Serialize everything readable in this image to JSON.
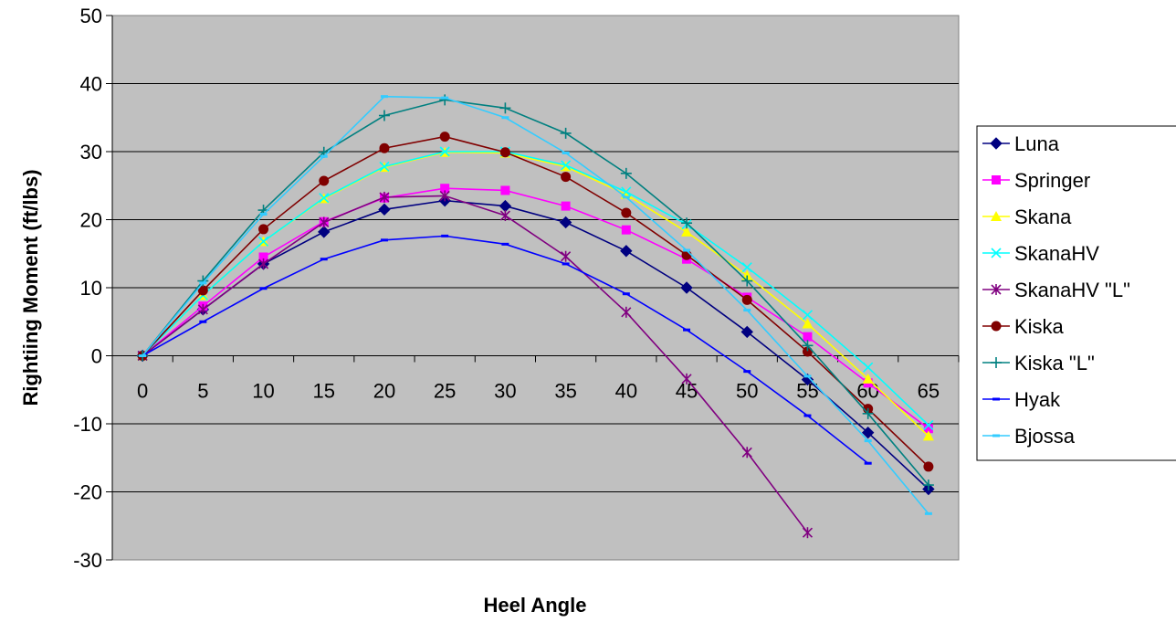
{
  "chart_data": {
    "type": "line",
    "title": "",
    "xlabel": "Heel Angle",
    "ylabel": "Rightiing Moment (ft/lbs)",
    "x": [
      0,
      5,
      10,
      15,
      20,
      25,
      30,
      35,
      40,
      45,
      50,
      55,
      60,
      65
    ],
    "x_tick_labels": [
      "0",
      "5",
      "10",
      "15",
      "20",
      "25",
      "30",
      "35",
      "40",
      "45",
      "50",
      "55",
      "60",
      "65"
    ],
    "ylim": [
      -30,
      50
    ],
    "y_ticks": [
      50,
      40,
      30,
      20,
      10,
      0,
      -10,
      -20,
      -30
    ],
    "y_tick_labels": [
      "50",
      "40",
      "30",
      "20",
      "10",
      "0",
      "-10",
      "-20",
      "-30"
    ],
    "grid": "horizontal",
    "plot_background": "#c0c0c0",
    "legend_position": "right",
    "series": [
      {
        "name": "Luna",
        "color": "#000080",
        "marker": "diamond",
        "values": [
          0,
          6.8,
          13.5,
          18.2,
          21.5,
          22.8,
          22.0,
          19.6,
          15.4,
          10.0,
          3.5,
          -3.5,
          -11.3,
          -19.6
        ]
      },
      {
        "name": "Springer",
        "color": "#ff00ff",
        "marker": "square",
        "values": [
          0,
          7.3,
          14.5,
          19.7,
          23.2,
          24.6,
          24.3,
          22.0,
          18.5,
          14.2,
          8.6,
          2.8,
          -4.0,
          -10.7
        ]
      },
      {
        "name": "Skana",
        "color": "#ffff00",
        "marker": "triangle",
        "values": [
          0,
          8.9,
          16.8,
          23.1,
          27.7,
          29.9,
          29.8,
          27.8,
          23.7,
          18.2,
          11.8,
          4.7,
          -3.4,
          -11.8
        ]
      },
      {
        "name": "SkanaHV",
        "color": "#00ffff",
        "marker": "x",
        "values": [
          0,
          8.9,
          16.8,
          23.2,
          27.8,
          30.0,
          30.0,
          28.0,
          24.1,
          19.3,
          13.0,
          6.0,
          -1.7,
          -10.2
        ]
      },
      {
        "name": "SkanaHV \"L\"",
        "color": "#800080",
        "marker": "star",
        "values": [
          0,
          6.8,
          13.5,
          19.6,
          23.3,
          23.5,
          20.6,
          14.6,
          6.4,
          -3.4,
          -14.2,
          -26.0,
          null,
          null
        ]
      },
      {
        "name": "Kiska",
        "color": "#800000",
        "marker": "circle",
        "values": [
          0,
          9.6,
          18.6,
          25.7,
          30.5,
          32.2,
          29.9,
          26.3,
          21.0,
          14.8,
          8.2,
          0.6,
          -7.8,
          -16.3
        ]
      },
      {
        "name": "Kiska \"L\"",
        "color": "#008080",
        "marker": "plus",
        "values": [
          0,
          11.0,
          21.4,
          29.9,
          35.3,
          37.6,
          36.4,
          32.7,
          26.8,
          19.5,
          11.0,
          1.5,
          -8.5,
          -19.0
        ]
      },
      {
        "name": "Hyak",
        "color": "#0000ff",
        "marker": "dash",
        "values": [
          0,
          5.0,
          9.9,
          14.2,
          17.0,
          17.6,
          16.4,
          13.5,
          9.1,
          3.8,
          -2.3,
          -8.8,
          -15.8,
          null
        ]
      },
      {
        "name": "Bjossa",
        "color": "#33ccff",
        "marker": "dash",
        "values": [
          0,
          10.7,
          20.8,
          29.3,
          38.1,
          37.9,
          35.0,
          29.8,
          23.3,
          15.5,
          6.7,
          -3.0,
          -12.5,
          -23.2
        ]
      }
    ]
  }
}
